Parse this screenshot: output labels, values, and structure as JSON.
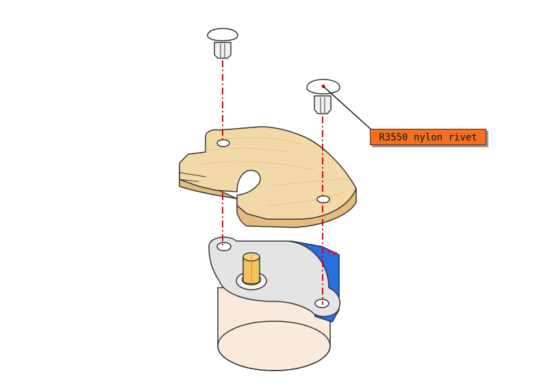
{
  "callout": {
    "label": "R3550 nylon rivet"
  },
  "colors": {
    "wood": "#f3d9a8",
    "wood_edge": "#e2bd7f",
    "guide_line": "#e00000",
    "callout_bg": "#f37021",
    "motor_body": "#fbe9dc",
    "motor_plate": "#e4e4e4",
    "driver_board": "#2a6fe0",
    "shaft": "#f2c45a"
  }
}
